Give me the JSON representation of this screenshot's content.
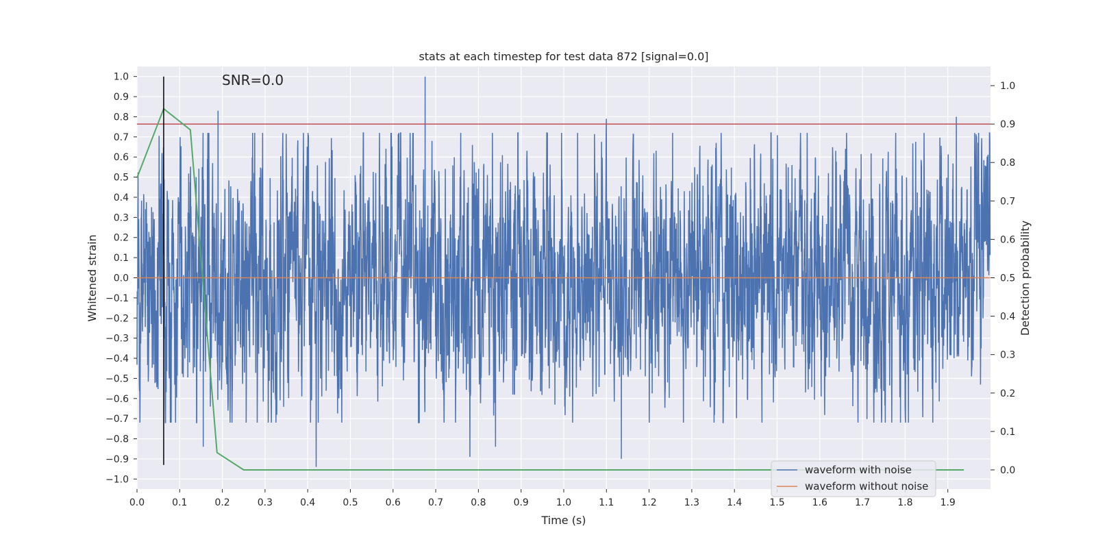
{
  "chart_data": {
    "type": "line",
    "title": "stats at each timestep for test data 872 [signal=0.0]",
    "annotation": "SNR=0.0",
    "xlabel": "Time (s)",
    "ylabel": "Whitened strain",
    "ylabel_right": "Detection probability",
    "xlim": [
      0.0,
      2.0
    ],
    "ylim": [
      -1.05,
      1.05
    ],
    "ylim_right": [
      -0.05,
      1.05
    ],
    "xticks": [
      0.0,
      0.1,
      0.2,
      0.3,
      0.4,
      0.5,
      0.6,
      0.7,
      0.8,
      0.9,
      1.0,
      1.1,
      1.2,
      1.3,
      1.4,
      1.5,
      1.6,
      1.7,
      1.8,
      1.9
    ],
    "xtick_labels": [
      "0.0",
      "0.1",
      "0.2",
      "0.3",
      "0.4",
      "0.5",
      "0.6",
      "0.7",
      "0.8",
      "0.9",
      "1.0",
      "1.1",
      "1.2",
      "1.3",
      "1.4",
      "1.5",
      "1.6",
      "1.7",
      "1.8",
      "1.9"
    ],
    "yticks": [
      1.0,
      0.9,
      0.8,
      0.7,
      0.6,
      0.5,
      0.4,
      0.3,
      0.2,
      0.1,
      0.0,
      -0.1,
      -0.2,
      -0.3,
      -0.4,
      -0.5,
      -0.6,
      -0.7,
      -0.8,
      -0.9,
      -1.0
    ],
    "ytick_labels": [
      "1.0",
      "0.9",
      "0.8",
      "0.7",
      "0.6",
      "0.5",
      "0.4",
      "0.3",
      "0.2",
      "0.1",
      "0.0",
      "−0.1",
      "−0.2",
      "−0.3",
      "−0.4",
      "−0.5",
      "−0.6",
      "−0.7",
      "−0.8",
      "−0.9",
      "−1.0"
    ],
    "yticks_right": [
      1.0,
      0.9,
      0.8,
      0.7,
      0.6,
      0.5,
      0.4,
      0.3,
      0.2,
      0.1,
      0.0
    ],
    "ytick_labels_right": [
      "1.0",
      "0.9",
      "0.8",
      "0.7",
      "0.6",
      "0.5",
      "0.4",
      "0.3",
      "0.2",
      "0.1",
      "0.0"
    ],
    "grid": true,
    "background": "#eaeaf2",
    "legend": "bottom-right",
    "series": [
      {
        "name": "waveform with noise",
        "axis": "left",
        "color": "#4c72b0",
        "sample_count": 4096,
        "x_range": [
          0.0,
          1.999
        ],
        "noise_std": 0.3,
        "notable_peaks": [
          {
            "x": 0.19,
            "y": 0.83
          },
          {
            "x": 0.675,
            "y": 1.0
          },
          {
            "x": 0.42,
            "y": -0.94
          },
          {
            "x": 0.78,
            "y": -0.89
          },
          {
            "x": 1.135,
            "y": -0.9
          },
          {
            "x": 1.1,
            "y": 0.79
          },
          {
            "x": 1.92,
            "y": 0.8
          },
          {
            "x": 0.155,
            "y": -0.84
          },
          {
            "x": 0.84,
            "y": -0.84
          }
        ]
      },
      {
        "name": "waveform without noise",
        "axis": "left",
        "color": "#dd8452",
        "x": [
          0.0,
          1.999
        ],
        "y": [
          0.0,
          0.0
        ]
      },
      {
        "name": "",
        "axis": "right",
        "color": "#55a868",
        "x": [
          0.0,
          0.0625,
          0.125,
          0.1875,
          0.25,
          0.3125,
          0.5,
          1.0,
          1.5,
          1.9375
        ],
        "y": [
          0.76,
          0.94,
          0.885,
          0.045,
          0.0,
          0.0,
          0.0,
          0.0,
          0.0,
          0.0
        ]
      }
    ],
    "threshold_line": {
      "axis": "right",
      "y": 0.9,
      "color": "#c44e52"
    },
    "marker_line": {
      "x": 0.0625,
      "y_range": [
        -0.93,
        1.0
      ],
      "color": "#000000"
    }
  }
}
